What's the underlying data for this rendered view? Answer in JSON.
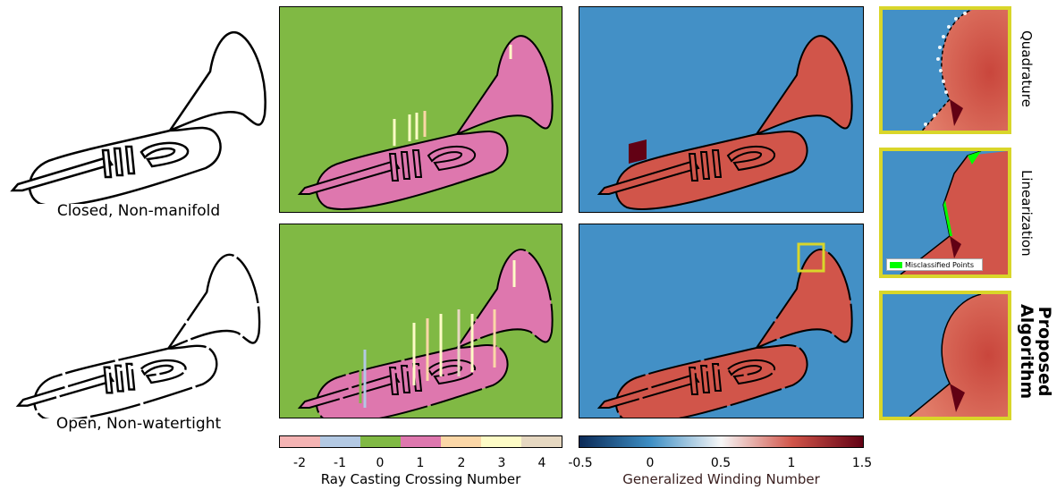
{
  "captions": {
    "row1": "Closed, Non-manifold",
    "row2": "Open, Non-watertight"
  },
  "ray_colorbar": {
    "label": "Ray Casting Crossing Number",
    "ticks": [
      "-2",
      "-1",
      "0",
      "1",
      "2",
      "3",
      "4"
    ],
    "colors": [
      "#f4b3b3",
      "#b3c9e3",
      "#80b944",
      "#de77ae",
      "#fbd7a7",
      "#fdfbc6",
      "#e6d8c1"
    ]
  },
  "gwn_colorbar": {
    "label": "Generalized Winding Number",
    "ticks": [
      "-0.5",
      "0",
      "0.5",
      "1",
      "1.5"
    ],
    "colors": [
      "#0b2a57",
      "#3d8ec4",
      "#f7f7f7",
      "#d1554a",
      "#620114"
    ]
  },
  "zoom_labels": {
    "quadrature": "Quadrature",
    "linearization": "Linearization",
    "proposed": "Proposed\nAlgorithm"
  },
  "legend": {
    "misclassified": "Misclassified Points",
    "swatch_color": "#00ff00"
  },
  "colors": {
    "ray_background": "#80b944",
    "ray_inside": "#de77ae",
    "gwn_background": "#4390c6",
    "gwn_inside": "#d1554a",
    "highlight": "#d9d62a"
  }
}
